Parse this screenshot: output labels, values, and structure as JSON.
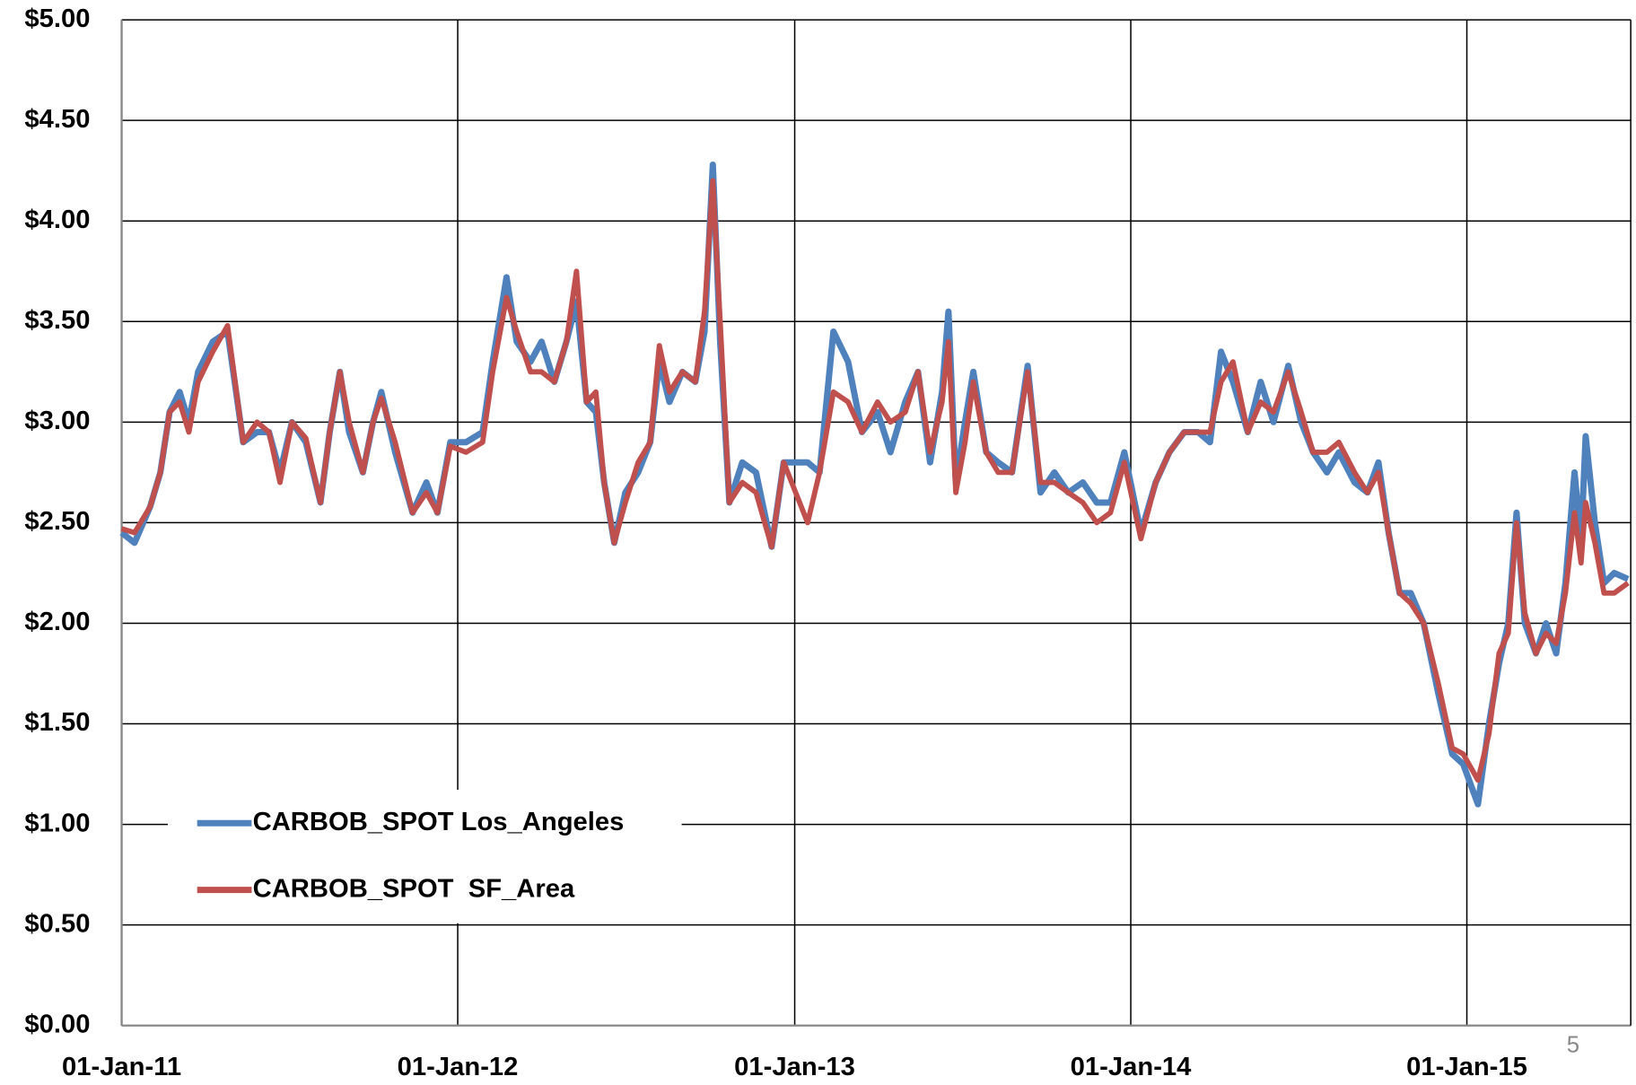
{
  "chart_data": {
    "type": "line",
    "legend_position": "lower left",
    "grid": true,
    "slide_number": "5",
    "xlim": [
      "2011-01-01",
      "2015-06-28"
    ],
    "xticks": [
      {
        "value": "2011-01-01",
        "label": "01-Jan-11"
      },
      {
        "value": "2012-01-01",
        "label": "01-Jan-12"
      },
      {
        "value": "2013-01-01",
        "label": "01-Jan-13"
      },
      {
        "value": "2014-01-01",
        "label": "01-Jan-14"
      },
      {
        "value": "2015-01-01",
        "label": "01-Jan-15"
      }
    ],
    "ylim": [
      0,
      5
    ],
    "yticks": [
      {
        "value": 0,
        "label": "$0.00"
      },
      {
        "value": 0.5,
        "label": "$0.50"
      },
      {
        "value": 1,
        "label": "$1.00"
      },
      {
        "value": 1.5,
        "label": "$1.50"
      },
      {
        "value": 2,
        "label": "$2.00"
      },
      {
        "value": 2.5,
        "label": "$2.50"
      },
      {
        "value": 3,
        "label": "$3.00"
      },
      {
        "value": 3.5,
        "label": "$3.50"
      },
      {
        "value": 4,
        "label": "$4.00"
      },
      {
        "value": 4.5,
        "label": "$4.50"
      },
      {
        "value": 5,
        "label": "$5.00"
      }
    ],
    "x": [
      "2011-01-01",
      "2011-01-15",
      "2011-02-01",
      "2011-02-12",
      "2011-02-22",
      "2011-03-05",
      "2011-03-15",
      "2011-03-25",
      "2011-04-10",
      "2011-04-26",
      "2011-05-13",
      "2011-05-28",
      "2011-06-10",
      "2011-06-22",
      "2011-07-05",
      "2011-07-20",
      "2011-08-05",
      "2011-08-15",
      "2011-08-26",
      "2011-09-05",
      "2011-09-20",
      "2011-10-01",
      "2011-10-10",
      "2011-10-25",
      "2011-11-13",
      "2011-11-28",
      "2011-12-10",
      "2011-12-24",
      "2012-01-10",
      "2012-01-28",
      "2012-02-08",
      "2012-02-23",
      "2012-03-05",
      "2012-03-20",
      "2012-04-01",
      "2012-04-15",
      "2012-04-28",
      "2012-05-09",
      "2012-05-20",
      "2012-05-30",
      "2012-06-08",
      "2012-06-19",
      "2012-07-01",
      "2012-07-15",
      "2012-07-28",
      "2012-08-07",
      "2012-08-18",
      "2012-09-01",
      "2012-09-15",
      "2012-09-25",
      "2012-10-04",
      "2012-10-12",
      "2012-10-22",
      "2012-11-05",
      "2012-11-20",
      "2012-12-07",
      "2012-12-20",
      "2013-01-15",
      "2013-01-28",
      "2013-02-12",
      "2013-02-28",
      "2013-03-15",
      "2013-04-01",
      "2013-04-15",
      "2013-05-01",
      "2013-05-15",
      "2013-05-28",
      "2013-06-10",
      "2013-06-17",
      "2013-06-25",
      "2013-07-05",
      "2013-07-14",
      "2013-07-28",
      "2013-08-10",
      "2013-08-25",
      "2013-09-11",
      "2013-09-25",
      "2013-10-10",
      "2013-10-25",
      "2013-11-10",
      "2013-11-25",
      "2013-12-10",
      "2013-12-25",
      "2014-01-12",
      "2014-01-28",
      "2014-02-12",
      "2014-02-28",
      "2014-03-15",
      "2014-03-28",
      "2014-04-09",
      "2014-04-22",
      "2014-05-08",
      "2014-05-22",
      "2014-06-05",
      "2014-06-21",
      "2014-07-05",
      "2014-07-18",
      "2014-08-02",
      "2014-08-15",
      "2014-09-01",
      "2014-09-15",
      "2014-09-27",
      "2014-10-08",
      "2014-10-20",
      "2014-11-01",
      "2014-11-15",
      "2014-12-01",
      "2014-12-16",
      "2014-12-28",
      "2015-01-13",
      "2015-01-25",
      "2015-02-05",
      "2015-02-15",
      "2015-02-24",
      "2015-03-05",
      "2015-03-17",
      "2015-03-28",
      "2015-04-08",
      "2015-04-18",
      "2015-04-28",
      "2015-05-05",
      "2015-05-10",
      "2015-05-20",
      "2015-05-30",
      "2015-06-10",
      "2015-06-25"
    ],
    "series": [
      {
        "name": "CARBOB_SPOT Los_Angeles",
        "color": "#4f81bd",
        "values": [
          2.45,
          2.4,
          2.58,
          2.75,
          3.05,
          3.15,
          3.0,
          3.25,
          3.4,
          3.45,
          2.9,
          2.95,
          2.95,
          2.75,
          3.0,
          2.9,
          2.6,
          2.95,
          3.25,
          2.95,
          2.75,
          3.0,
          3.15,
          2.85,
          2.55,
          2.7,
          2.55,
          2.9,
          2.9,
          2.95,
          3.3,
          3.72,
          3.4,
          3.3,
          3.4,
          3.2,
          3.4,
          3.6,
          3.1,
          3.05,
          2.7,
          2.4,
          2.65,
          2.75,
          2.9,
          3.3,
          3.1,
          3.25,
          3.2,
          3.45,
          4.28,
          3.4,
          2.6,
          2.8,
          2.75,
          2.38,
          2.8,
          2.8,
          2.75,
          3.45,
          3.3,
          2.95,
          3.05,
          2.85,
          3.1,
          3.25,
          2.8,
          3.15,
          3.55,
          2.7,
          3.0,
          3.25,
          2.85,
          2.8,
          2.75,
          3.28,
          2.65,
          2.75,
          2.65,
          2.7,
          2.6,
          2.6,
          2.85,
          2.45,
          2.7,
          2.85,
          2.95,
          2.95,
          2.9,
          3.35,
          3.2,
          2.95,
          3.2,
          3.0,
          3.28,
          3.0,
          2.85,
          2.75,
          2.85,
          2.7,
          2.65,
          2.8,
          2.45,
          2.15,
          2.15,
          2.0,
          1.65,
          1.35,
          1.3,
          1.1,
          1.5,
          1.8,
          2.0,
          2.55,
          2.0,
          1.85,
          2.0,
          1.85,
          2.2,
          2.75,
          2.4,
          2.93,
          2.5,
          2.2,
          2.25,
          2.22
        ]
      },
      {
        "name": "CARBOB_SPOT  SF_Area",
        "color": "#c0504d",
        "values": [
          2.47,
          2.45,
          2.58,
          2.75,
          3.05,
          3.1,
          2.95,
          3.2,
          3.35,
          3.48,
          2.9,
          3.0,
          2.95,
          2.7,
          3.0,
          2.92,
          2.6,
          2.95,
          3.25,
          3.0,
          2.75,
          3.0,
          3.12,
          2.9,
          2.55,
          2.65,
          2.55,
          2.88,
          2.85,
          2.9,
          3.25,
          3.62,
          3.45,
          3.25,
          3.25,
          3.2,
          3.4,
          3.75,
          3.1,
          3.15,
          2.7,
          2.4,
          2.6,
          2.8,
          2.9,
          3.38,
          3.15,
          3.25,
          3.2,
          3.55,
          4.2,
          3.5,
          2.6,
          2.7,
          2.65,
          2.38,
          2.8,
          2.5,
          2.75,
          3.15,
          3.1,
          2.95,
          3.1,
          3.0,
          3.05,
          3.25,
          2.85,
          3.1,
          3.4,
          2.65,
          2.9,
          3.2,
          2.85,
          2.75,
          2.75,
          3.25,
          2.7,
          2.7,
          2.65,
          2.6,
          2.5,
          2.55,
          2.8,
          2.42,
          2.7,
          2.85,
          2.95,
          2.95,
          2.95,
          3.2,
          3.3,
          2.95,
          3.1,
          3.05,
          3.25,
          3.05,
          2.85,
          2.85,
          2.9,
          2.75,
          2.65,
          2.75,
          2.45,
          2.15,
          2.1,
          2.0,
          1.7,
          1.38,
          1.35,
          1.22,
          1.45,
          1.85,
          1.95,
          2.5,
          2.05,
          1.85,
          1.95,
          1.9,
          2.15,
          2.55,
          2.3,
          2.6,
          2.4,
          2.15,
          2.15,
          2.2
        ]
      }
    ]
  }
}
